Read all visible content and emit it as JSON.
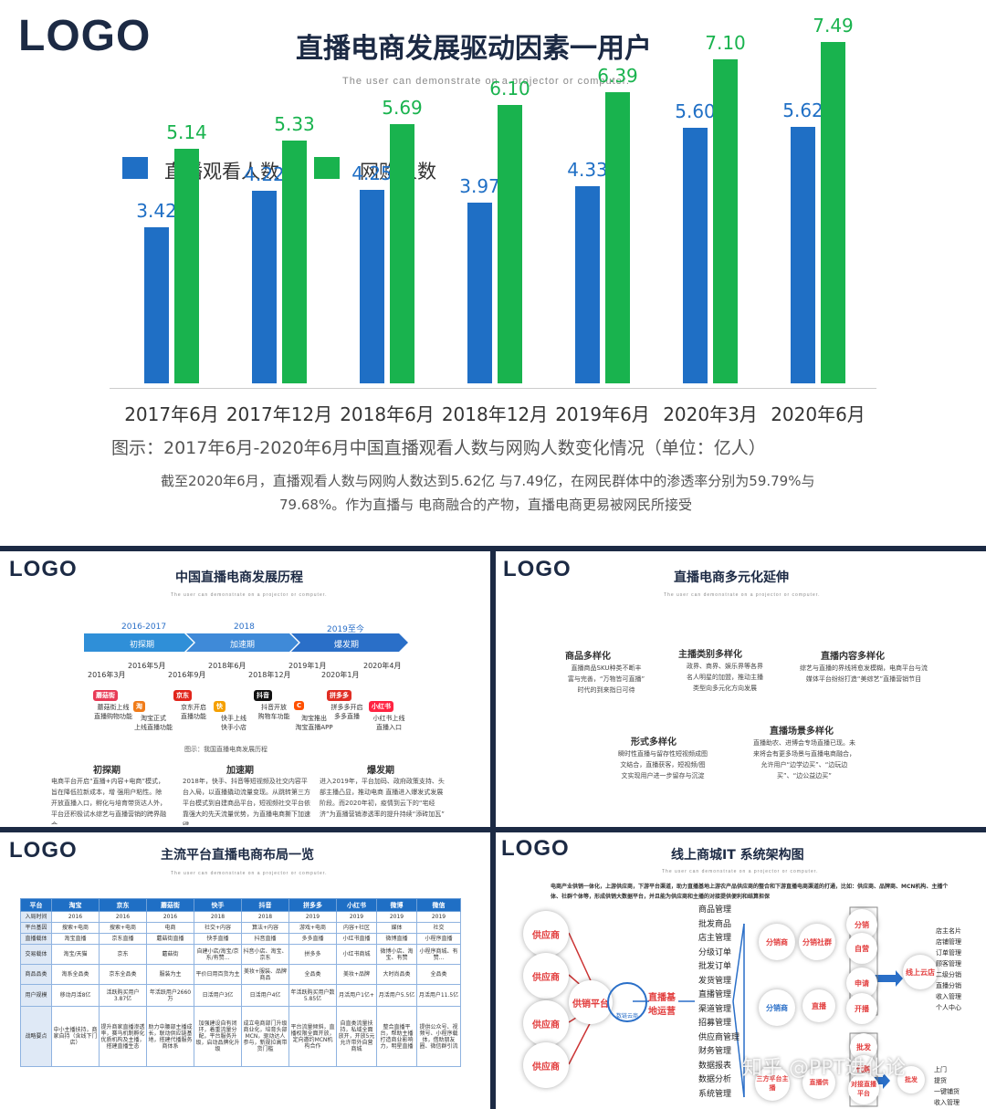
{
  "slide1": {
    "logo": "LOGO",
    "title": "直播电商发展驱动因素一用户",
    "subtitle": "The user can demonstrate on a projector or computer.",
    "legend": [
      {
        "label": "直播观看人数",
        "color": "#1f6fc5"
      },
      {
        "label": "网购人数",
        "color": "#19b34e"
      }
    ],
    "caption": "图示：2017年6月-2020年6月中国直播观看人数与网购人数变化情况（单位：亿人）",
    "note_line1": "截至2020年6月，直播观看人数与网购人数达到5.62亿 与7.49亿，在网民群体中的渗透率分别为59.79%与",
    "note_line2": "79.68%。作为直播与 电商融合的产物，直播电商更易被网民所接受"
  },
  "chart_data": {
    "type": "bar",
    "categories": [
      "2017年6月",
      "2017年12月",
      "2018年6月",
      "2018年12月",
      "2019年6月",
      "2020年3月",
      "2020年6月"
    ],
    "series": [
      {
        "name": "直播观看人数",
        "values": [
          3.42,
          4.22,
          4.25,
          3.97,
          4.33,
          5.6,
          5.62
        ],
        "labels": [
          "3.42",
          "4.22",
          "4.25",
          "3.97",
          "4.33",
          "5.60",
          "5.62"
        ],
        "color": "#1f6fc5"
      },
      {
        "name": "网购人数",
        "values": [
          5.14,
          5.33,
          5.69,
          6.1,
          6.39,
          7.1,
          7.49
        ],
        "labels": [
          "5.14",
          "5.33",
          "5.69",
          "6.10",
          "6.39",
          "7.10",
          "7.49"
        ],
        "color": "#19b34e"
      }
    ],
    "ylim": [
      0,
      8
    ],
    "legend": "top-left",
    "grid": false
  },
  "slide2": {
    "logo": "LOGO",
    "title": "中国直播电商发展历程",
    "subtitle": "The user can demonstrate on a projector or computer.",
    "phases": [
      {
        "years": "2016-2017",
        "name": "初探期"
      },
      {
        "years": "2018",
        "name": "加速期"
      },
      {
        "years": "2019至今",
        "name": "爆发期"
      }
    ],
    "dates": [
      "2016年3月",
      "2016年5月",
      "2016年9月",
      "2018年6月",
      "2018年12月",
      "2019年1月",
      "2020年1月",
      "2020年4月"
    ],
    "brands": [
      "蘑菇街",
      "淘",
      "京东",
      "快",
      "抖音",
      "C",
      "拼多多",
      "小红书"
    ],
    "events": [
      "蘑菇街上线\n直播购物功能",
      "淘宝正式\n上线直播功能",
      "京东开启\n直播功能",
      "快手上线\n快手小店",
      "抖音开放\n购物车功能",
      "淘宝推出\n淘宝直播APP",
      "拼多多开启\n多多直播",
      "小红书上线\n直播入口"
    ],
    "fig_caption": "图示：我国直播电商发展历程",
    "sections": [
      {
        "head": "初探期",
        "body": "电商平台开启“直播+内容+电商”模式，旨在降低拉新成本，增 强用户粘性。除开放直播入口，孵化与培育带货达人外，平台还积极试水综艺与直播营销的跨界融合"
      },
      {
        "head": "加速期",
        "body": "2018年，快手、抖音等短视频及社交内容平台入局，以直播撬动流量变现。从跳转第三方平台模式到自建商品平台，短视频社交平台依靠强大的先天流量优势，为直播电商撕下加速键"
      },
      {
        "head": "爆发期",
        "body": "进入2019年，平台加码、政府政策支持、头部主播凸显，推动电商 直播进入爆发式发展阶段。而2020年初，疫情到云下的“宅经济”为直播营销渗透率的提升持续“添砖加瓦”"
      }
    ]
  },
  "slide3": {
    "logo": "LOGO",
    "title": "直播电商多元化延伸",
    "subtitle": "The user can demonstrate on a projector or computer.",
    "blocks": [
      {
        "head": "商品多样化",
        "body": "直播商品SKU种类不断丰\n富与完善，“万物皆可直播”\n时代的到来指日可待"
      },
      {
        "head": "主播类别多样化",
        "body": "政界、商界、娱乐界等各界\n名人明星的加盟，推动主播\n类型向多元化方向发展"
      },
      {
        "head": "直播内容多样化",
        "body": "综艺与直播的界线将愈发模糊，电商平台与流\n媒体平台纷纷打造“美综艺”直播营销节目"
      },
      {
        "head": "形式多样化",
        "body": "瞬时性直播与留存性短视频成图\n文结合，直播获客，短视频/图\n文实现用户进一步留存与沉淀"
      },
      {
        "head": "直播场景多样化",
        "body": "直播助农、进博会专场直播已现。未\n来将会有更多场景与直播电商融合，\n允许用户“边学边买”、“边玩边\n买”、“边公益边买”"
      }
    ]
  },
  "slide4": {
    "logo": "LOGO",
    "title": "主流平台直播电商布局一览",
    "subtitle": "The user can demonstrate on a projector or computer.",
    "headers": [
      "平台",
      "淘宝",
      "京东",
      "蘑菇街",
      "快手",
      "抖音",
      "拼多多",
      "小红书",
      "微博",
      "微信"
    ],
    "rows": [
      [
        "入局时间",
        "2016",
        "2016",
        "2016",
        "2018",
        "2018",
        "2019",
        "2019",
        "2019",
        "2019"
      ],
      [
        "平台基因",
        "搜索+电商",
        "搜索+电商",
        "电商",
        "社交+内容",
        "算法+内容",
        "游戏+电商",
        "内容+社区",
        "媒体",
        "社交"
      ],
      [
        "直播载体",
        "淘宝直播",
        "京东直播",
        "蘑菇街直播",
        "快手直播",
        "抖音直播",
        "多多直播",
        "小红书直播",
        "微博直播",
        "小程序直播"
      ],
      [
        "交易载体",
        "淘宝/天猫",
        "京东",
        "蘑菇街",
        "自建小店/淘宝/京东/有赞...",
        "抖音小店、淘宝、京东",
        "拼多多",
        "小红书商城",
        "微博小店、淘宝、有赞",
        "小程序商城、有赞..."
      ],
      [
        "商品品类",
        "淘系全品类",
        "京东全品类",
        "服装为主",
        "平价日用百货为主",
        "美妆+服装、品牌商品",
        "全品类",
        "美妆+品牌",
        "大时尚品类",
        "全品类"
      ],
      [
        "用户规模",
        "移动月活8亿",
        "活跃购买用户3.87亿",
        "年活跃用户2660万",
        "日活用户3亿",
        "日活用户4亿",
        "年活跃购买用户数5.85亿",
        "月活用户1亿+",
        "月活用户5.5亿",
        "月活用户11.5亿"
      ],
      [
        "战略要点",
        "中小主播扶持，商家自持（含线下门店）",
        "提升商家直播渗透率，赛马机制孵化优质机构及主播，搭建直播生态",
        "助力中腰部主播成长，联动供应链基地，搭建代播服务商体系",
        "加强建设自有闭环，着重流量分配，平台服务升级，启动品牌化升级",
        "成立电商部门升级商业化，培育头部MCN，驱动达人参与，新规拉高带货门槛",
        "平台流量倾斜，直播权限全面开放，定向邀约MCN机构合作",
        "自直类流量扶持，私域全面放开，开放5元允许带外自营商城",
        "整合直播平台，帮助主播打造商业影响力，明星直播",
        "提供公众号、视频号、小程序载体，借助朋友圈、微信群引流"
      ]
    ]
  },
  "slide5": {
    "logo": "LOGO",
    "title": "线上商城IT 系统架构图",
    "subtitle": "The user can demonstrate on a projector or computer.",
    "intro": "电商产业供销一体化，上游供应商，下游平台渠道，助力直播基地上游农产品供应商的整合和下游直播电商渠道的打通，比如：供应商、品牌商、MCN机构、主播个体、社群个体等，形成供销大数据平台，并且能为供应商和主播的对接提供便利和结算担保",
    "suppliers": [
      "供应商",
      "供应商",
      "供应商",
      "供应商"
    ],
    "platform": "供销平台",
    "base": "直播基地运营",
    "modules": [
      "商品管理",
      "批发商品",
      "店主管理",
      "分级订单",
      "批发订单",
      "发货管理",
      "直播管理",
      "渠道管理",
      "招募管理",
      "供应商管理",
      "财务管理",
      "数据报表",
      "数据分析",
      "系统管理"
    ],
    "nodes": [
      "分销商",
      "分销社群",
      "分销",
      "自营",
      "申请",
      "开播",
      "分销商",
      "直播",
      "批发",
      "代购",
      "三方平台主播",
      "直播供",
      "对接直播平台",
      "批发"
    ],
    "store": "线上云店",
    "store_features": [
      "店主名片",
      "店铺管理",
      "订单管理",
      "顾客管理",
      "二级分销",
      "直播分销",
      "收入管理",
      "个人中心"
    ],
    "right_bottom": [
      "上门",
      "提货",
      "一键铺货",
      "收入管理"
    ],
    "center_logo": "数链云商",
    "watermark": "知乎 @PPT进化论"
  }
}
